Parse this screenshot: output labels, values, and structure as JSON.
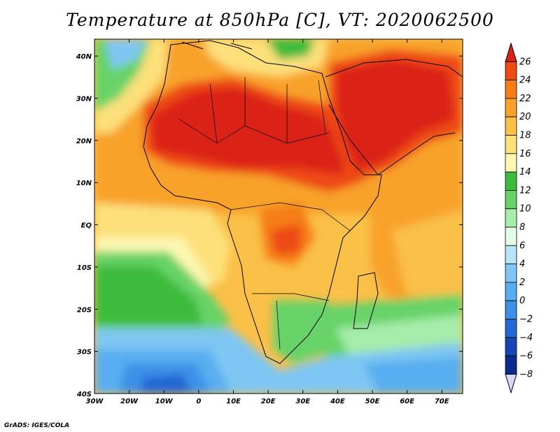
{
  "title": "Temperature at 850hPa [C], VT: 2020062500",
  "credit": "GrADS: IGES/COLA",
  "map": {
    "lon_range": [
      -30,
      76
    ],
    "lat_range": [
      -40,
      44
    ],
    "x_ticks": [
      {
        "lon": -30,
        "label": "30W"
      },
      {
        "lon": -20,
        "label": "20W"
      },
      {
        "lon": -10,
        "label": "10W"
      },
      {
        "lon": 0,
        "label": "0"
      },
      {
        "lon": 10,
        "label": "10E"
      },
      {
        "lon": 20,
        "label": "20E"
      },
      {
        "lon": 30,
        "label": "30E"
      },
      {
        "lon": 40,
        "label": "40E"
      },
      {
        "lon": 50,
        "label": "50E"
      },
      {
        "lon": 60,
        "label": "60E"
      },
      {
        "lon": 70,
        "label": "70E"
      }
    ],
    "y_ticks": [
      {
        "lat": 40,
        "label": "40N"
      },
      {
        "lat": 30,
        "label": "30N"
      },
      {
        "lat": 20,
        "label": "20N"
      },
      {
        "lat": 10,
        "label": "10N"
      },
      {
        "lat": 0,
        "label": "EQ"
      },
      {
        "lat": -10,
        "label": "10S"
      },
      {
        "lat": -20,
        "label": "20S"
      },
      {
        "lat": -30,
        "label": "30S"
      },
      {
        "lat": -40,
        "label": "40S"
      }
    ]
  },
  "colorbar": {
    "levels": [
      "26",
      "24",
      "22",
      "20",
      "18",
      "16",
      "14",
      "12",
      "10",
      "8",
      "6",
      "4",
      "2",
      "0",
      "−2",
      "−4",
      "−6",
      "−8"
    ],
    "colors": [
      "#db2315",
      "#ee4a15",
      "#f57e18",
      "#f8a22c",
      "#fac048",
      "#fde07a",
      "#fdf7b4",
      "#3cbb3c",
      "#67d367",
      "#a6ecab",
      "#e3fbe9",
      "#b6e5fb",
      "#7ec6f3",
      "#58aef0",
      "#3c90e7",
      "#2468d6",
      "#1646b4",
      "#0a2a8c",
      "#d8d8ff"
    ]
  },
  "regions": [
    {
      "name": "southern-ocean-cold",
      "color": "#58aef0"
    },
    {
      "name": "south-atlantic-cool",
      "color": "#67d367"
    },
    {
      "name": "sahara-hot",
      "color": "#db2315"
    },
    {
      "name": "arabia-hot",
      "color": "#db2315"
    }
  ]
}
